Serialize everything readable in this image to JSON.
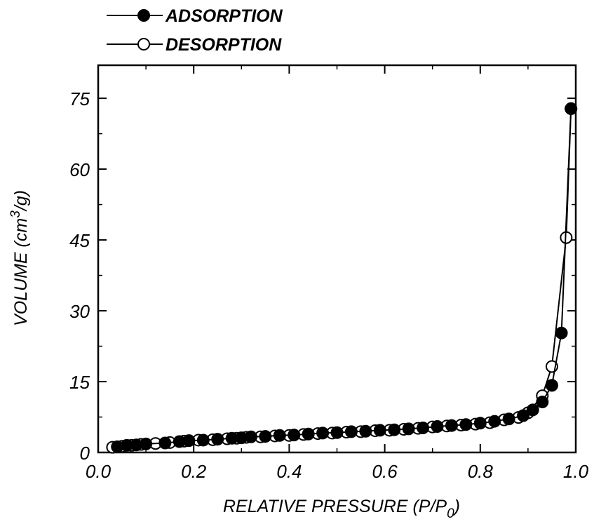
{
  "chart_data": {
    "type": "scatter",
    "xlabel": "RELATIVE PRESSURE (P/P",
    "xlabel_sub": "0",
    "xlabel_end": ")",
    "ylabel": "VOLUME (cm",
    "ylabel_sup": "3",
    "ylabel_end": "/g)",
    "xlim": [
      0.0,
      1.0
    ],
    "ylim": [
      0,
      82
    ],
    "xticks": [
      "0.0",
      "0.2",
      "0.4",
      "0.6",
      "0.8",
      "1.0"
    ],
    "yticks": [
      "0",
      "15",
      "30",
      "45",
      "60",
      "75"
    ],
    "grid": false,
    "legend_position": "top-left",
    "series": [
      {
        "name": "ADSORPTION",
        "marker": "filled-circle",
        "x": [
          0.04,
          0.06,
          0.08,
          0.1,
          0.14,
          0.17,
          0.19,
          0.22,
          0.25,
          0.28,
          0.3,
          0.32,
          0.35,
          0.38,
          0.41,
          0.44,
          0.47,
          0.5,
          0.53,
          0.56,
          0.59,
          0.62,
          0.65,
          0.68,
          0.71,
          0.74,
          0.77,
          0.8,
          0.83,
          0.86,
          0.89,
          0.91,
          0.93,
          0.95,
          0.97,
          0.99
        ],
        "y": [
          1.2,
          1.5,
          1.6,
          1.8,
          2.0,
          2.3,
          2.5,
          2.6,
          2.8,
          3.0,
          3.1,
          3.3,
          3.4,
          3.6,
          3.7,
          3.9,
          4.1,
          4.2,
          4.4,
          4.5,
          4.7,
          4.8,
          5.0,
          5.2,
          5.5,
          5.7,
          5.9,
          6.2,
          6.6,
          7.1,
          7.8,
          9.0,
          10.7,
          14.2,
          25.3,
          72.8
        ]
      },
      {
        "name": "DESORPTION",
        "marker": "open-circle",
        "x": [
          0.03,
          0.05,
          0.07,
          0.09,
          0.12,
          0.15,
          0.18,
          0.21,
          0.24,
          0.27,
          0.29,
          0.31,
          0.34,
          0.37,
          0.4,
          0.43,
          0.46,
          0.49,
          0.52,
          0.55,
          0.58,
          0.61,
          0.64,
          0.67,
          0.7,
          0.73,
          0.76,
          0.79,
          0.82,
          0.85,
          0.88,
          0.9,
          0.93,
          0.95,
          0.98,
          0.99
        ],
        "y": [
          1.1,
          1.3,
          1.5,
          1.7,
          1.9,
          2.1,
          2.4,
          2.6,
          2.7,
          2.9,
          3.0,
          3.2,
          3.3,
          3.5,
          3.6,
          3.8,
          4.0,
          4.1,
          4.3,
          4.4,
          4.6,
          4.7,
          4.9,
          5.1,
          5.4,
          5.6,
          5.8,
          6.0,
          6.3,
          6.9,
          7.4,
          8.4,
          12.0,
          18.2,
          45.5,
          72.8
        ]
      }
    ]
  }
}
